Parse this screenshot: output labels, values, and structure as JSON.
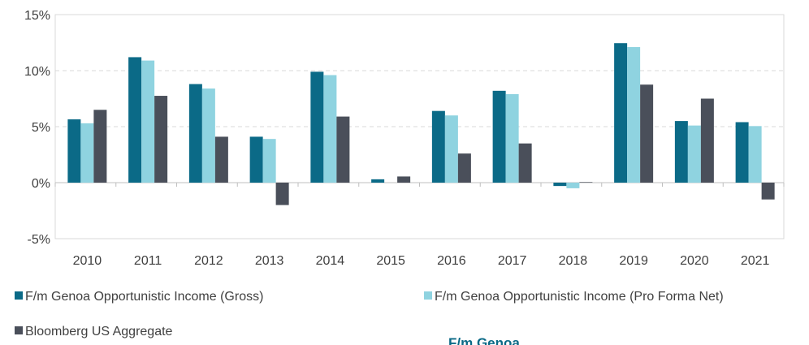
{
  "chart_data": {
    "type": "bar",
    "categories": [
      "2010",
      "2011",
      "2012",
      "2013",
      "2014",
      "2015",
      "2016",
      "2017",
      "2018",
      "2019",
      "2020",
      "2021"
    ],
    "series": [
      {
        "name": "F/m Genoa Opportunistic Income (Gross)",
        "color": "#0b6a87",
        "values": [
          5.65,
          11.2,
          8.8,
          4.1,
          9.9,
          0.3,
          6.4,
          8.2,
          -0.3,
          12.45,
          5.5,
          5.4
        ]
      },
      {
        "name": "F/m Genoa Opportunistic Income (Pro Forma Net)",
        "color": "#8fd3e0",
        "values": [
          5.3,
          10.9,
          8.4,
          3.9,
          9.6,
          0.0,
          6.0,
          7.9,
          -0.5,
          12.1,
          5.1,
          5.05
        ]
      },
      {
        "name": "Bloomberg US Aggregate",
        "color": "#4a4f5a",
        "values": [
          6.5,
          7.75,
          4.1,
          -2.0,
          5.9,
          0.55,
          2.6,
          3.5,
          0.05,
          8.75,
          7.5,
          -1.5
        ]
      }
    ],
    "ylim": [
      -5,
      15
    ],
    "yticks": [
      {
        "value": -5,
        "label": "-5%"
      },
      {
        "value": 0,
        "label": "0%"
      },
      {
        "value": 5,
        "label": "5%"
      },
      {
        "value": 10,
        "label": "10%"
      },
      {
        "value": 15,
        "label": "15%"
      }
    ],
    "grid": true,
    "caption": "F/m Genoa"
  }
}
